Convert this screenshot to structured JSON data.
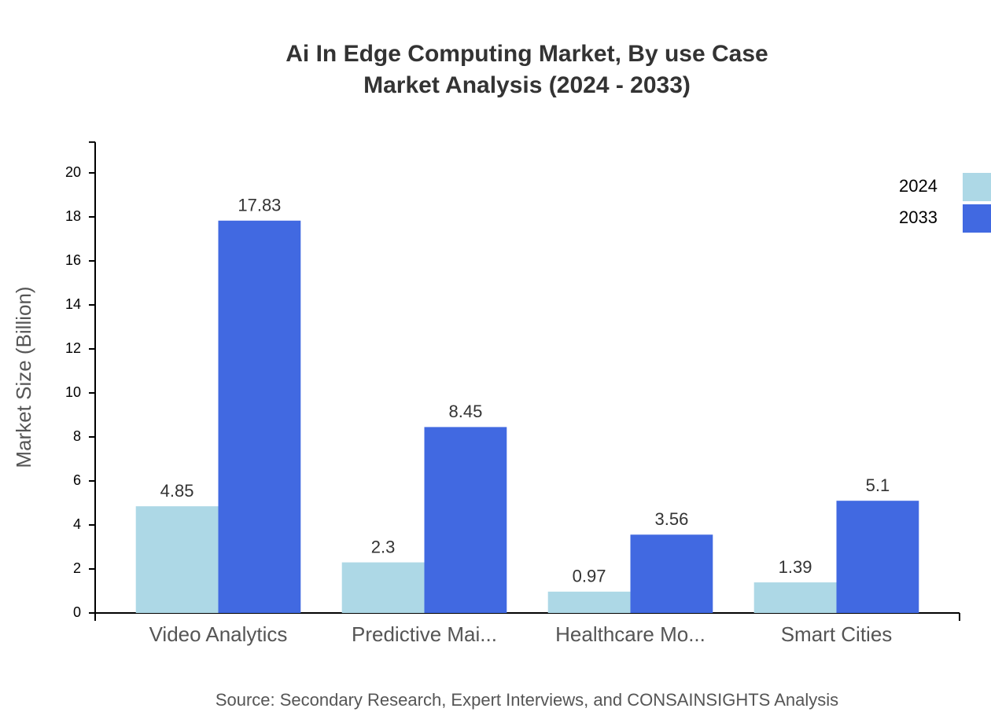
{
  "chart_data": {
    "type": "bar",
    "title": "Ai In Edge Computing Market, By use Case",
    "subtitle": "Market Analysis (2024 - 2033)",
    "y_label": "Market Size (Billion)",
    "source": "Source: Secondary Research, Expert Interviews, and CONSAINSIGHTS Analysis",
    "categories": [
      "Video Analytics",
      "Predictive Mai...",
      "Healthcare Mo...",
      "Smart Cities"
    ],
    "series": [
      {
        "name": "2024",
        "color": "#add8e6",
        "values": [
          4.85,
          2.3,
          0.97,
          1.39
        ]
      },
      {
        "name": "2033",
        "color": "#4169e1",
        "values": [
          17.83,
          8.45,
          3.56,
          5.1
        ]
      }
    ],
    "ylim": [
      0,
      21.4
    ],
    "yticks": [
      0,
      2,
      4,
      6,
      8,
      10,
      12,
      14,
      16,
      18,
      20
    ],
    "legend": "top-right"
  }
}
